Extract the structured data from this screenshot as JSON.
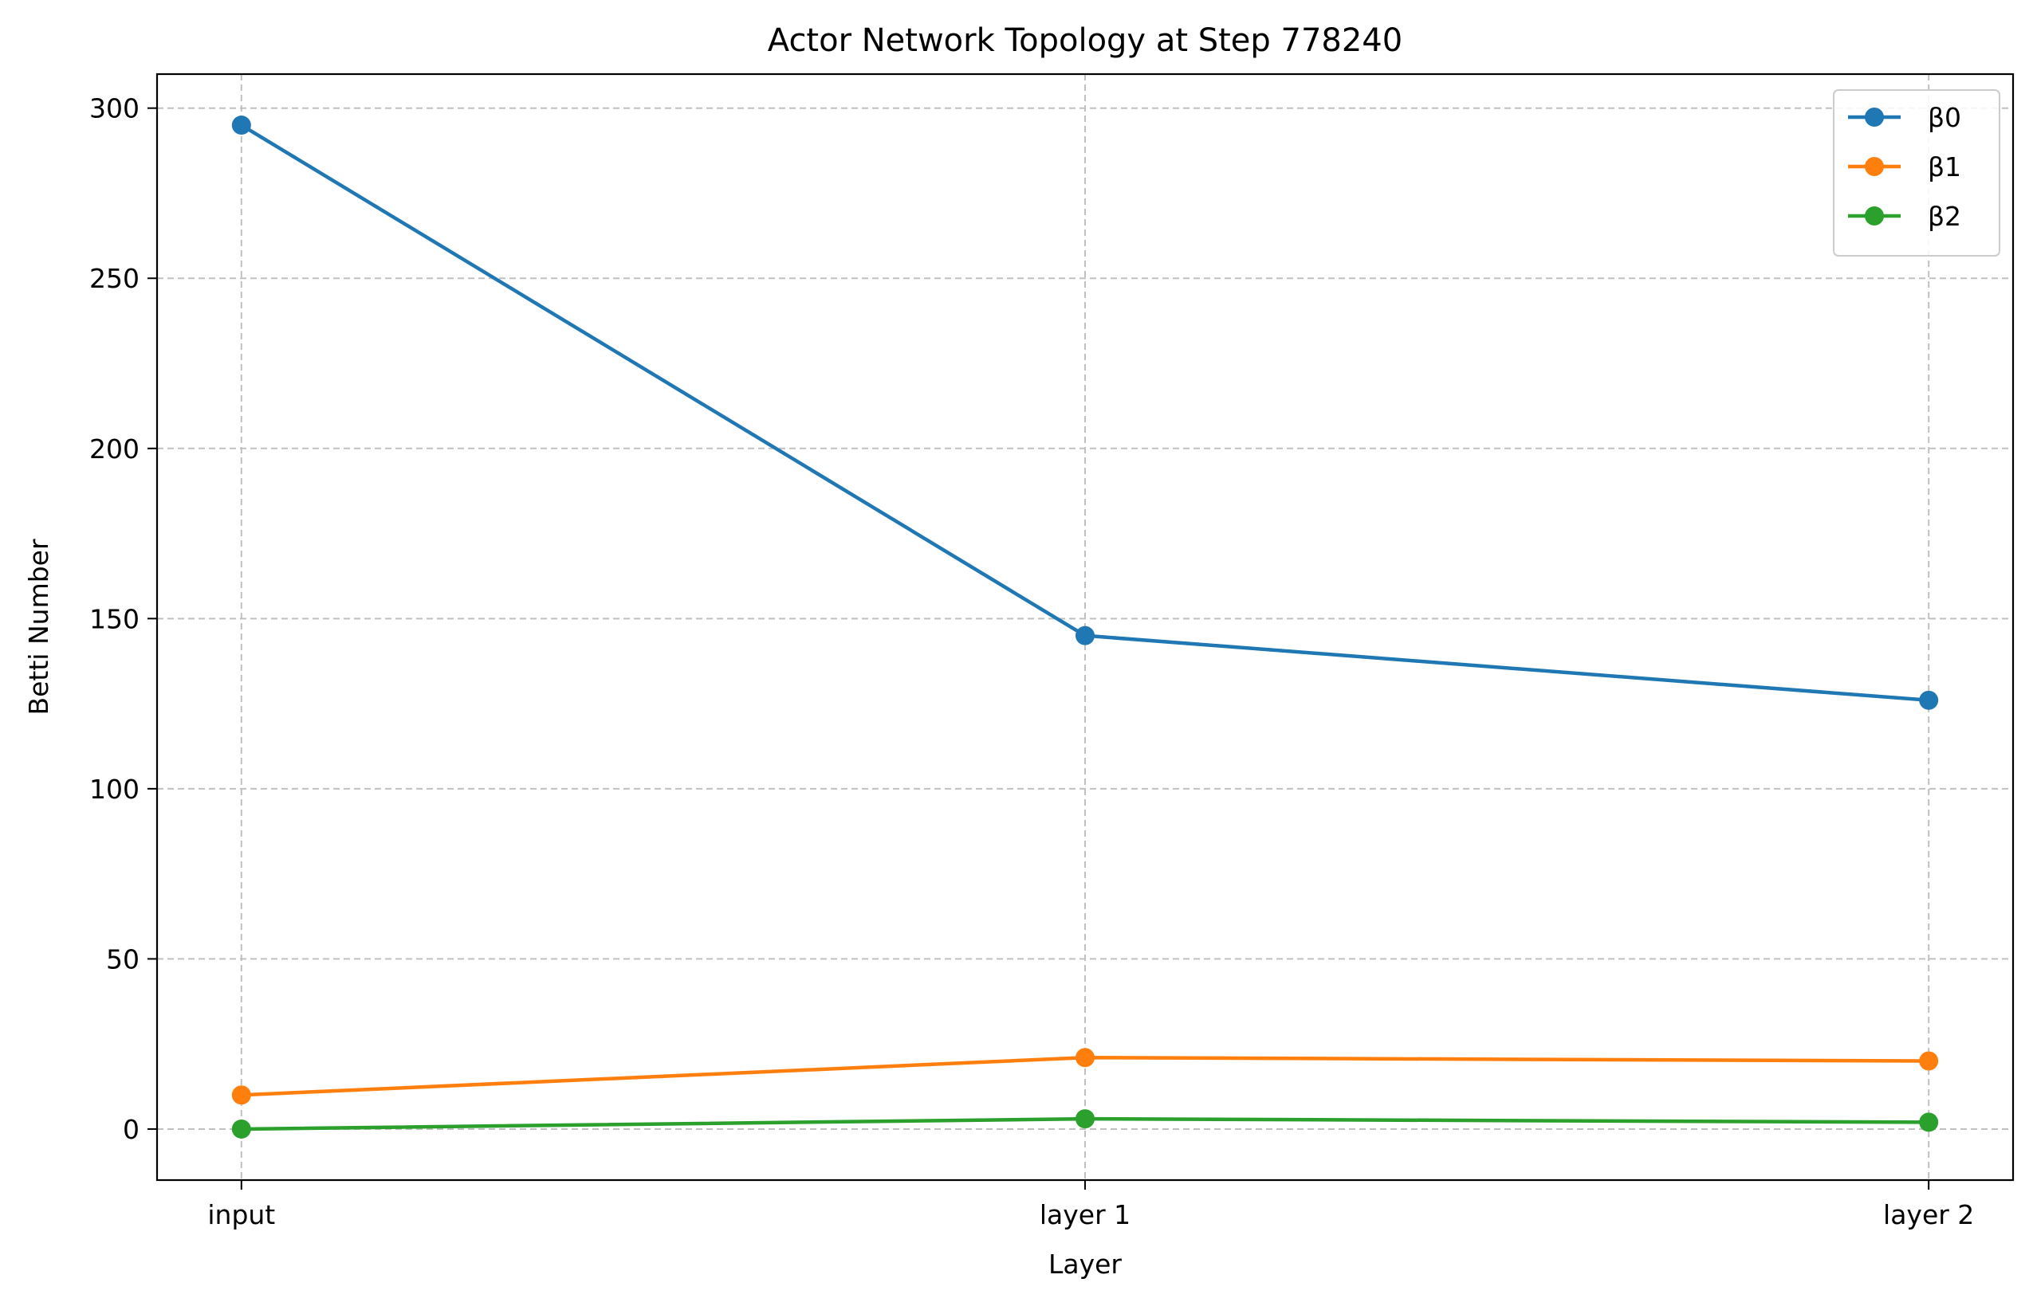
{
  "chart_data": {
    "type": "line",
    "title": "Actor Network Topology at Step 778240",
    "xlabel": "Layer",
    "ylabel": "Betti Number",
    "categories": [
      "input",
      "layer 1",
      "layer 2"
    ],
    "ylim": [
      -15,
      310
    ],
    "yticks": [
      0,
      50,
      100,
      150,
      200,
      250,
      300
    ],
    "grid": true,
    "legend_position": "top-right",
    "series": [
      {
        "name": "β0",
        "color": "#1f77b4",
        "values": [
          295,
          145,
          126
        ]
      },
      {
        "name": "β1",
        "color": "#ff7f0e",
        "values": [
          10,
          21,
          20
        ]
      },
      {
        "name": "β2",
        "color": "#2ca02c",
        "values": [
          0,
          3,
          2
        ]
      }
    ]
  }
}
